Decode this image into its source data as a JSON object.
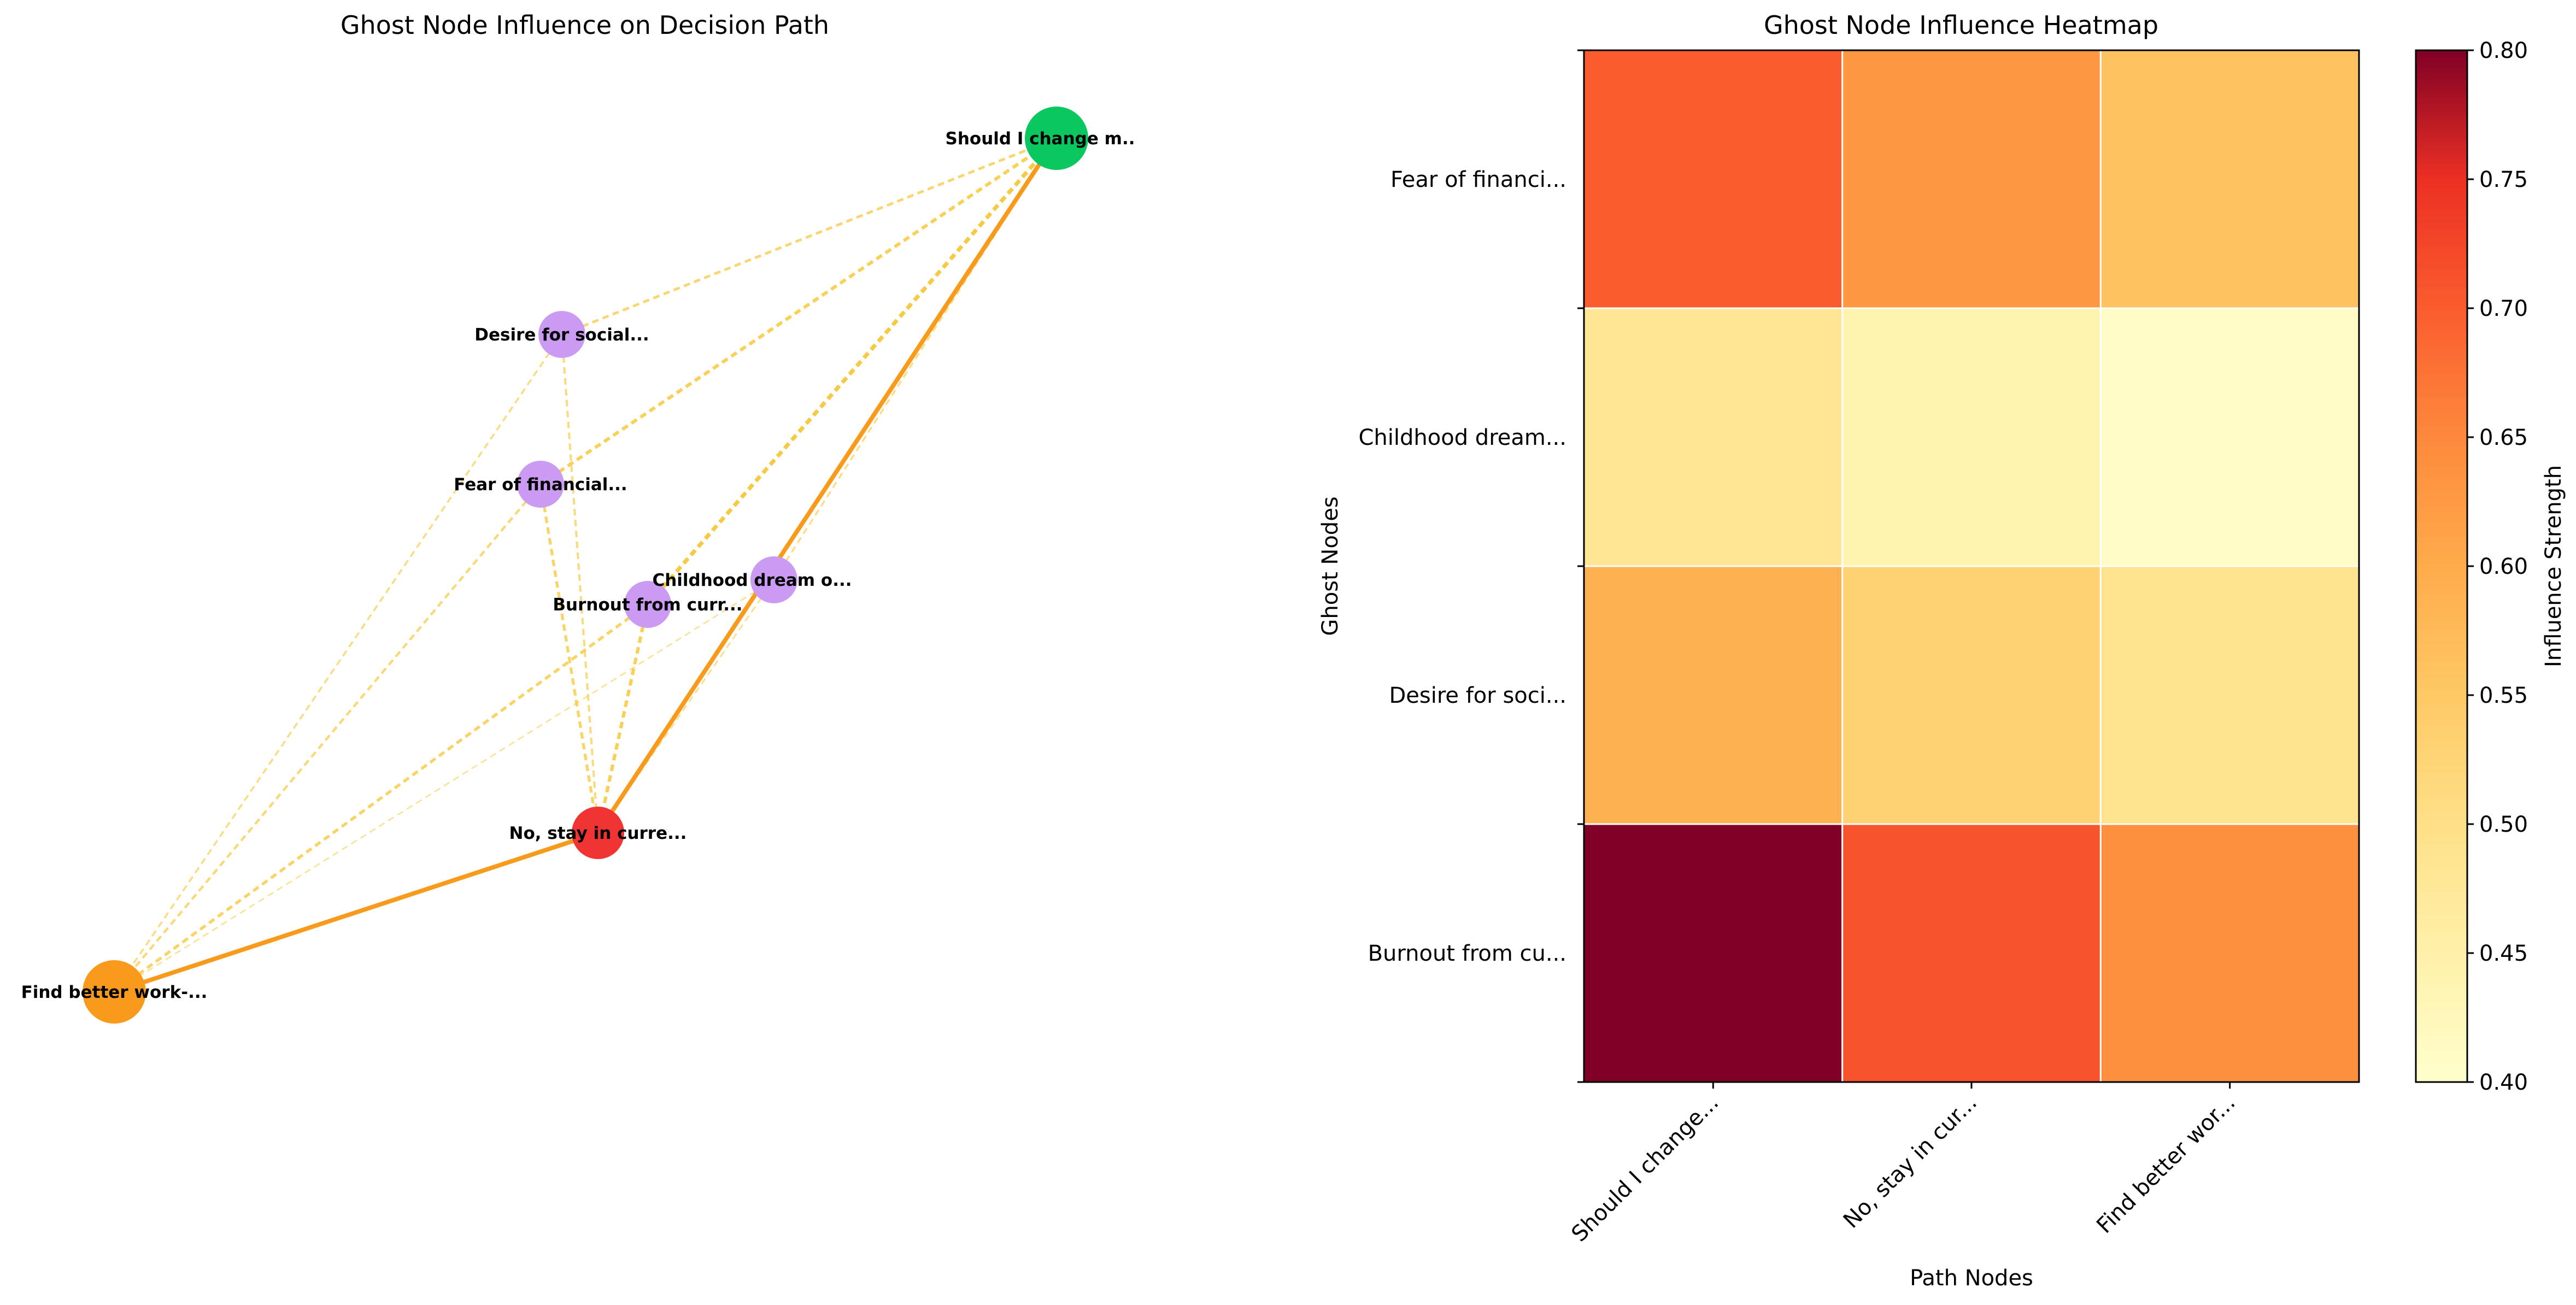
{
  "chart_data": [
    {
      "type": "network",
      "title": "Ghost Node Influence on Decision Path",
      "nodes": [
        {
          "id": "root",
          "label": "Should I change m..",
          "role": "path-start",
          "color": "#0ac760"
        },
        {
          "id": "stay",
          "label": "No, stay in curre...",
          "role": "path",
          "color": "#f03434"
        },
        {
          "id": "find",
          "label": "Find better work-...",
          "role": "path-end",
          "color": "#f89b1c"
        },
        {
          "id": "social",
          "label": "Desire for social...",
          "role": "ghost",
          "color": "#cb9bf3"
        },
        {
          "id": "fear",
          "label": "Fear of financial...",
          "role": "ghost",
          "color": "#cb9bf3"
        },
        {
          "id": "burnout",
          "label": "Burnout from curr...",
          "role": "ghost",
          "color": "#cb9bf3"
        },
        {
          "id": "dream",
          "label": "Childhood dream o...",
          "role": "ghost",
          "color": "#cb9bf3"
        }
      ],
      "path_edges": [
        {
          "from": "root",
          "to": "stay",
          "color": "#f89b1c"
        },
        {
          "from": "stay",
          "to": "find",
          "color": "#f89b1c"
        }
      ],
      "ghost_edges": [
        {
          "from": "fear",
          "to": "root",
          "strength": 0.7
        },
        {
          "from": "fear",
          "to": "stay",
          "strength": 0.63
        },
        {
          "from": "fear",
          "to": "find",
          "strength": 0.56
        },
        {
          "from": "dream",
          "to": "root",
          "strength": 0.48
        },
        {
          "from": "dream",
          "to": "stay",
          "strength": 0.44
        },
        {
          "from": "dream",
          "to": "find",
          "strength": 0.41
        },
        {
          "from": "social",
          "to": "root",
          "strength": 0.59
        },
        {
          "from": "social",
          "to": "stay",
          "strength": 0.53
        },
        {
          "from": "social",
          "to": "find",
          "strength": 0.49
        },
        {
          "from": "burnout",
          "to": "root",
          "strength": 0.8
        },
        {
          "from": "burnout",
          "to": "stay",
          "strength": 0.71
        },
        {
          "from": "burnout",
          "to": "find",
          "strength": 0.64
        }
      ],
      "ghost_edge_color": "#f7c531"
    },
    {
      "type": "heatmap",
      "title": "Ghost Node Influence Heatmap",
      "xlabel": "Path Nodes",
      "ylabel": "Ghost Nodes",
      "x_categories": [
        "Should I change...",
        "No, stay in cur...",
        "Find better wor..."
      ],
      "y_categories": [
        "Fear of financi...",
        "Childhood dream...",
        "Desire for soci...",
        "Burnout from cu..."
      ],
      "values": [
        [
          0.7,
          0.63,
          0.56
        ],
        [
          0.48,
          0.44,
          0.41
        ],
        [
          0.59,
          0.53,
          0.49
        ],
        [
          0.8,
          0.71,
          0.64
        ]
      ],
      "colormap": "YlOrRd",
      "colorbar": {
        "label": "Influence Strength",
        "range": [
          0.4,
          0.8
        ],
        "ticks": [
          "0.40",
          "0.45",
          "0.50",
          "0.55",
          "0.60",
          "0.65",
          "0.70",
          "0.75",
          "0.80"
        ]
      }
    }
  ]
}
